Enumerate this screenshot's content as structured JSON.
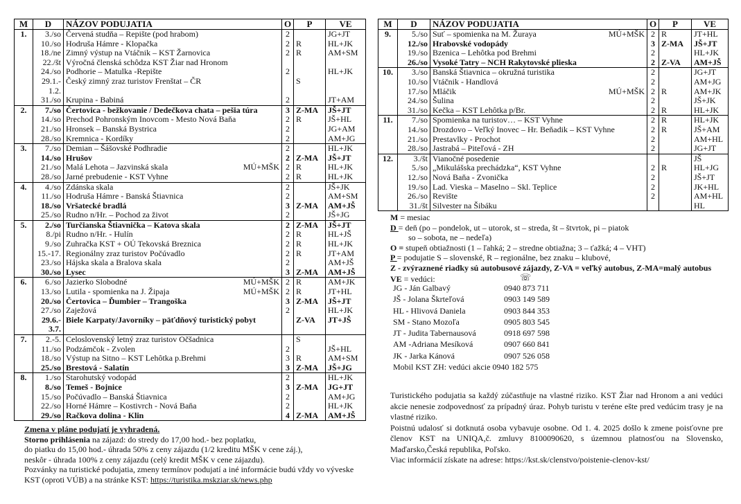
{
  "headers": {
    "m": "M",
    "d": "D",
    "name": "NÁZOV PODUJATIA",
    "o": "O",
    "p": "P",
    "ve": "VE"
  },
  "left_table": {
    "months": [
      {
        "m": "1.",
        "rows": [
          {
            "d": "3./so",
            "name": "Červená studňa – Repište (pod hrabom)",
            "o": "2",
            "p": "",
            "ve": "JG+JT"
          },
          {
            "d": "10./so",
            "name": "Hodruša Hámre - Klopačka",
            "o": "2",
            "p": "R",
            "ve": "HL+JK"
          },
          {
            "d": "18./ne",
            "name": "Zimný výstup na Vtáčnik – KST Žarnovica",
            "o": "2",
            "p": "R",
            "ve": "AM+SM"
          },
          {
            "d": "22./št",
            "name": "Výročná členská schôdza KST Žiar nad Hronom",
            "o": "",
            "p": "",
            "ve": ""
          },
          {
            "d": "24./so",
            "name": "Podhorie – Matulka -Repište",
            "o": "2",
            "p": "",
            "ve": "HL+JK"
          },
          {
            "d": "29.1.- 1.2.",
            "name": "Český zimný zraz turistov Frenštat – ČR",
            "o": "",
            "p": "S",
            "ve": ""
          },
          {
            "d": "31./so",
            "name": "Krupina - Babiná",
            "o": "2",
            "p": "",
            "ve": "JT+AM"
          }
        ]
      },
      {
        "m": "2.",
        "rows": [
          {
            "d": "7./so",
            "name": "Čertovica - bežkovanie / Dedečkova chata – pešia túra",
            "o": "3",
            "p": "Z-MA",
            "ve": "JŠ+JT",
            "bold": true
          },
          {
            "d": "14./so",
            "name": "Prechod Pohronským  Inovcom - Mesto Nová Baňa",
            "o": "2",
            "p": "R",
            "ve": "JŠ+HL"
          },
          {
            "d": "21./so",
            "name": "Hronsek – Banská Bystrica",
            "o": "2",
            "p": "",
            "ve": "JG+AM"
          },
          {
            "d": "28./so",
            "name": "Kremnica - Kordíky",
            "o": "2",
            "p": "",
            "ve": "AM+JG"
          }
        ]
      },
      {
        "m": "3.",
        "rows": [
          {
            "d": "7./so",
            "name": "Demian – Šášovské Podhradie",
            "o": "2",
            "p": "",
            "ve": "HL+JK"
          },
          {
            "d": "14./so",
            "name": "Hrušov",
            "o": "2",
            "p": "Z-MA",
            "ve": "JŠ+JT",
            "bold": true
          },
          {
            "d": "21./so",
            "name": "Malá Lehota – Jazvinská skala",
            "extra": "MÚ+MŠK",
            "o": "2",
            "p": "R",
            "ve": "HL+JK"
          },
          {
            "d": "28./so",
            "name": "Jarné prebudenie  - KST Vyhne",
            "o": "2",
            "p": "R",
            "ve": "HL+JK"
          }
        ]
      },
      {
        "m": "4.",
        "rows": [
          {
            "d": "4./so",
            "name": "Zdánska skala",
            "o": "2",
            "p": "",
            "ve": "JŠ+JK"
          },
          {
            "d": "11./so",
            "name": "Hodruša Hámre - Banská Štiavnica",
            "o": "2",
            "p": "",
            "ve": "AM+SM"
          },
          {
            "d": "18./so",
            "name": "Vršatecké bradlá",
            "o": "3",
            "p": "Z-MA",
            "ve": "AM+JŠ",
            "bold": true
          },
          {
            "d": "25./so",
            "name": "Rudno n/Hr. – Pochod za život",
            "o": "2",
            "p": "",
            "ve": "JŠ+JG"
          }
        ]
      },
      {
        "m": "5.",
        "rows": [
          {
            "d": "2./so",
            "name": "Turčianska Štiavnička – Katova skala",
            "o": "2",
            "p": "Z-MA",
            "ve": "JŠ+JT",
            "bold": true
          },
          {
            "d": "8./pi",
            "name": "Rudno n/Hr. - Hulín",
            "o": "2",
            "p": "R",
            "ve": "HL+JŠ"
          },
          {
            "d": "9./so",
            "name": "Zuhračka   KST + OÚ Tekovská Breznica",
            "o": "2",
            "p": "R",
            "ve": "HL+JK"
          },
          {
            "d": "15.-17.",
            "name": "Regionálny zraz turistov Počúvadlo",
            "o": "2",
            "p": "R",
            "ve": "JT+AM"
          },
          {
            "d": "23./so",
            "name": "Hájska skala a Bralova skala",
            "o": "2",
            "p": "",
            "ve": "AM+JŠ"
          },
          {
            "d": "30./so",
            "name": "Lysec",
            "o": "3",
            "p": "Z-MA",
            "ve": "AM+JŠ",
            "bold": true
          }
        ]
      },
      {
        "m": "6.",
        "rows": [
          {
            "d": "6./so",
            "name": "Jazierko Slobodné",
            "extra": "MÚ+MŠK",
            "o": "2",
            "p": "R",
            "ve": "AM+JK"
          },
          {
            "d": "13./so",
            "name": "Lutila - spomienka na J. Žipaja",
            "extra": "MÚ+MŠK",
            "o": "2",
            "p": "R",
            "ve": "JT+HL"
          },
          {
            "d": "20./so",
            "name": "Čertovica – Ďumbier – Trangoška",
            "o": "3",
            "p": "Z-MA",
            "ve": "JŠ+JT",
            "bold": true
          },
          {
            "d": "27./so",
            "name": "Zaježová",
            "o": "2",
            "p": "",
            "ve": "HL+JK"
          },
          {
            "d": "29.6.- 3.7.",
            "name": "Biele Karpaty/Javorníky –  päťdňový turistický pobyt",
            "o": "",
            "p": "Z-VA",
            "ve": "JT+JŠ",
            "bold": true
          }
        ]
      },
      {
        "m": "7.",
        "rows": [
          {
            "d": "2.-5.",
            "name": "Celoslovenský letný zraz turistov Očšadnica",
            "o": "",
            "p": "S",
            "ve": ""
          },
          {
            "d": "11./so",
            "name": "Podzámčok - Zvolen",
            "o": "2",
            "p": "",
            "ve": "JŠ+HL"
          },
          {
            "d": "18./so",
            "name": "Výstup na Sitno – KST Lehôtka p.Brehmi",
            "o": "3",
            "p": "R",
            "ve": "AM+SM"
          },
          {
            "d": "25./so",
            "name": "Brestová - Salatín",
            "o": "3",
            "p": "Z-MA",
            "ve": "JŠ+JG",
            "bold": true
          }
        ]
      },
      {
        "m": "8.",
        "rows": [
          {
            "d": "1./so",
            "name": "Starohutský vodopád",
            "o": "2",
            "p": "",
            "ve": "HL+JK"
          },
          {
            "d": "8./so",
            "name": "Temeš - Bojnice",
            "o": "3",
            "p": "Z-MA",
            "ve": "JG+JT",
            "bold": true
          },
          {
            "d": "15./so",
            "name": "Počúvadlo – Banská Štiavnica",
            "o": "2",
            "p": "",
            "ve": "AM+JG"
          },
          {
            "d": "22./so",
            "name": "Horné Hámre – Kostivrch - Nová Baňa",
            "o": "2",
            "p": "",
            "ve": "HL+JK"
          },
          {
            "d": "29./so",
            "name": "Račkova dolina - Klin",
            "o": "4",
            "p": "Z-MA",
            "ve": "AM+JŠ",
            "bold": true
          }
        ]
      }
    ]
  },
  "right_table": {
    "months": [
      {
        "m": "9.",
        "rows": [
          {
            "d": "5./so",
            "name": "Suť – spomienka na M. Žuraya",
            "extra": "MÚ+MŠK",
            "o": "2",
            "p": "R",
            "ve": "JT+HL"
          },
          {
            "d": "12./so",
            "name": "Hrabovské vodopády",
            "o": "3",
            "p": "Z-MA",
            "ve": "JŠ+JT",
            "bold": true
          },
          {
            "d": "19./so",
            "name": "Bzenica – Lehôtka pod Brehmi",
            "o": "2",
            "p": "",
            "ve": "HL+JK"
          },
          {
            "d": "26./so",
            "name": "Vysoké Tatry – NCH Rakytovské plieska",
            "o": "2",
            "p": "Z-VA",
            "ve": "AM+JŠ",
            "bold": true
          }
        ]
      },
      {
        "m": "10.",
        "rows": [
          {
            "d": "3./so",
            "name": "Banská Štiavnica – okružná turistika",
            "o": "2",
            "p": "",
            "ve": "JG+JT"
          },
          {
            "d": "10./so",
            "name": "Vtáčnik - Handlová",
            "o": "2",
            "p": "",
            "ve": "AM+JG"
          },
          {
            "d": "17./so",
            "name": "Mláčik",
            "extra": "MÚ+MŠK",
            "o": "2",
            "p": "R",
            "ve": "AM+JK"
          },
          {
            "d": "24./so",
            "name": "Šulina",
            "o": "2",
            "p": "",
            "ve": "JŠ+JK"
          },
          {
            "d": "31./so",
            "name": "Kečka – KST Lehôtka p/Br.",
            "o": "2",
            "p": "R",
            "ve": "HL+JK"
          }
        ]
      },
      {
        "m": "11.",
        "rows": [
          {
            "d": "7./so",
            "name": "Spomienka na turistov… – KST Vyhne",
            "o": "2",
            "p": "R",
            "ve": "HL+JK"
          },
          {
            "d": "14./so",
            "name": "Drozdovo – Veľký Inovec – Hr. Beňadik – KST Vyhne",
            "o": "2",
            "p": "R",
            "ve": "JŠ+AM"
          },
          {
            "d": "21./so",
            "name": "Prestavlky - Prochot",
            "o": "2",
            "p": "",
            "ve": "AM+HL"
          },
          {
            "d": "28./so",
            "name": "Jastrabá – Piteľová - ZH",
            "o": "2",
            "p": "",
            "ve": "JG+JT"
          }
        ]
      },
      {
        "m": "12.",
        "rows": [
          {
            "d": "3./št",
            "name": "Vianočné posedenie",
            "o": "",
            "p": "",
            "ve": "JŠ"
          },
          {
            "d": "5./so",
            "name": "„Mikulášska prechádzka“,   KST Vyhne",
            "o": "2",
            "p": "R",
            "ve": "HL+JG"
          },
          {
            "d": "12./so",
            "name": "Nová Baňa - Zvonička",
            "o": "2",
            "p": "",
            "ve": "JŠ+JT"
          },
          {
            "d": "19./so",
            "name": "Lad. Vieska – Maselno – Skl. Teplice",
            "o": "2",
            "p": "",
            "ve": "JK+HL"
          },
          {
            "d": "26./so",
            "name": "Revište",
            "o": "2",
            "p": "",
            "ve": "AM+HL"
          },
          {
            "d": "31./št",
            "name": "Silvester na Šibáku",
            "o": "",
            "p": "",
            "ve": "HL"
          }
        ]
      }
    ]
  },
  "notes": {
    "change": "Zmena v pláne podujatí je vyhradená.",
    "storno_bold": "Storno prihlásenia",
    "storno_rest": " na zájazd: do stredy do 17,00 hod.- bez poplatku,",
    "line2": "do piatku do 15,00 hod.- úhrada 50% z ceny zájazdu (1/2 kreditu MŠK v cene záj.),",
    "line3": "neskôr - úhrada 100% z ceny zájazdu (celý kredit MŠK v cene zájazdu).",
    "line4": "Pozvánky na turistické podujatia, zmeny termínov podujatí a iné informácie budú vždy vo vývеske",
    "line5_prefix": "KST (oproti VÚB) a na stránke KST: ",
    "link": "https://turistika.mskziar.sk/news.php"
  },
  "legend": {
    "m_key": "M",
    "m_val": " = mesiac",
    "d_key": "D ",
    "d_val": " = deň (po – pondelok, ut – utorok, st – streda, št – štvrtok, pi – piatok",
    "d_val2": "so – sobota, ne – nedeľa)",
    "o_key": "O =",
    "o_val": "  stupeň obtiažnosti (1 – ľahká; 2 – stredne obtiažna; 3 – ťažká; 4 – VHT)",
    "p_key": "P ",
    "p_val": " = podujatie  S – slovenské, R – regionálne, bez znaku – klubové,",
    "z_line": "Z - zvýraznené riadky sú autobusové zájazdy, Z-VA = veľký autobus, Z-MA=malý autobus",
    "ve_key": "VE",
    "ve_val": " = vedúci:"
  },
  "contacts": [
    {
      "code": "JG    - Ján Galbavý",
      "phone": "0940 873 711"
    },
    {
      "code": "JŠ    - Jolana Škrteľová",
      "phone": "0903 149 589"
    },
    {
      "code": "HL  - Hlivová Daniela",
      "phone": "0903 844 353"
    },
    {
      "code": "SM  - Stano Mozoľa",
      "phone": "0905 803 545"
    },
    {
      "code": "JT   - Judita Tabernausová",
      "phone": "0918 697 598"
    },
    {
      "code": "AM  -Adriana Mesíková",
      "phone": "0907 660 841"
    },
    {
      "code": "JK  -  Jarka Kánová",
      "phone": "0907 526 058"
    }
  ],
  "mobile": "Mobil KST ZH: vedúci akcie  0940 182 575",
  "disclaimer": {
    "p1": "Turistického podujatia sa každý zúčastňuje na vlastné riziko. KST Žiar nad Hronom a ani vedúci akcie nenesie zodpovednosť za prípadný úraz. Pohyb turistu v teréne ešte pred vedúcim trasy je na vlastné riziko.",
    "p2": "Poistnú udalosť si dotknutá osoba vybavuje osobne. Od 1. 4. 2025 došlo k zmene poisťovne pre členov KST na UNIQA,č. zmluvy 8100090620, s územnou platnosťou na Slovensko, Maďarsko,Česká republika, Poľsko.",
    "p3": "Viac informácií získate na adrese: https://kst.sk/clenstvo/poistenie-clenov-kst/"
  }
}
